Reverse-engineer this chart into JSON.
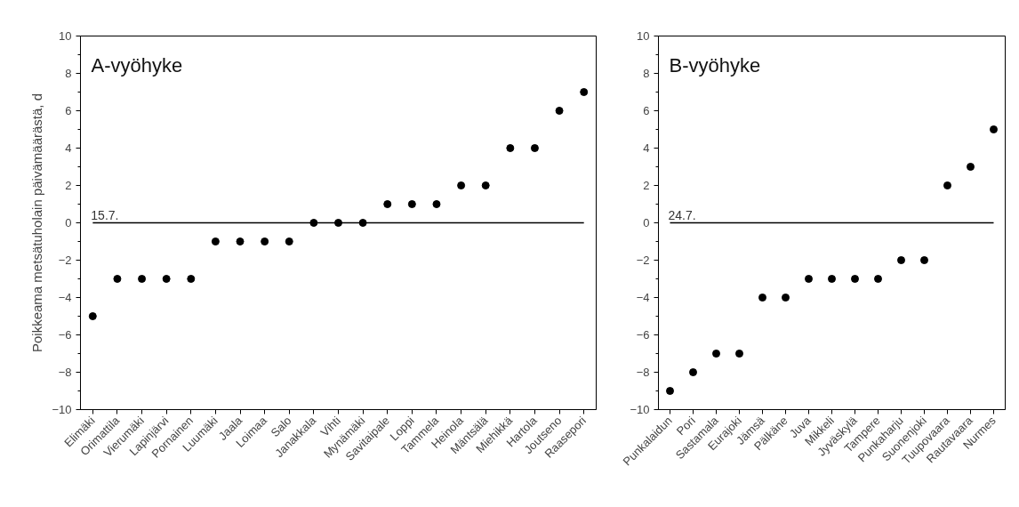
{
  "chart_data": [
    {
      "type": "scatter",
      "title": "A-vyöhyke",
      "ylabel": "Poikkeama metsätuholain päivämäärästä, d",
      "categories": [
        "Elimäki",
        "Orimattila",
        "Vierumäki",
        "Lapinjärvi",
        "Pornainen",
        "Luumäki",
        "Jaala",
        "Loimaa",
        "Salo",
        "Janakkala",
        "Vihti",
        "Mynämäki",
        "Savitaipale",
        "Loppi",
        "Tammela",
        "Heinola",
        "Mäntsälä",
        "Miehikkä",
        "Hartola",
        "Joutseno",
        "Raasepori"
      ],
      "series": [
        {
          "color": "#000000",
          "values": [
            -5,
            -3,
            -3,
            -3,
            -3,
            -1,
            -1,
            -1,
            -1,
            0,
            0,
            0,
            1,
            1,
            1,
            2,
            2,
            4,
            4,
            6,
            7
          ]
        }
      ],
      "ylim": [
        -10,
        10
      ],
      "yticks": [
        -10,
        -8,
        -6,
        -4,
        -2,
        0,
        2,
        4,
        6,
        8,
        10
      ],
      "marker": "circle",
      "grid": false,
      "ref_lines": [
        {
          "axis": "y",
          "value": 0,
          "color": "#000000"
        }
      ],
      "annotations": [
        {
          "text": "15.7.",
          "y": 0
        }
      ]
    },
    {
      "type": "scatter",
      "title": "B-vyöhyke",
      "categories": [
        "Punkalaidun",
        "Pori",
        "Sastamala",
        "Eurajoki",
        "Jämsä",
        "Pälkäne",
        "Juva",
        "Mikkeli",
        "Jyväskylä",
        "Tampere",
        "Punkaharju",
        "Suonenjoki",
        "Tuupovaara",
        "Rautavaara",
        "Nurmes"
      ],
      "series": [
        {
          "color": "#000000",
          "values": [
            -9,
            -8,
            -7,
            -7,
            -4,
            -4,
            -3,
            -3,
            -3,
            -3,
            -2,
            -2,
            2,
            3,
            5
          ]
        }
      ],
      "ylim": [
        -10,
        10
      ],
      "yticks": [
        -10,
        -8,
        -6,
        -4,
        -2,
        0,
        2,
        4,
        6,
        8,
        10
      ],
      "marker": "circle",
      "grid": false,
      "ref_lines": [
        {
          "axis": "y",
          "value": 0,
          "color": "#000000"
        }
      ],
      "annotations": [
        {
          "text": "24.7.",
          "y": 0
        }
      ]
    }
  ]
}
